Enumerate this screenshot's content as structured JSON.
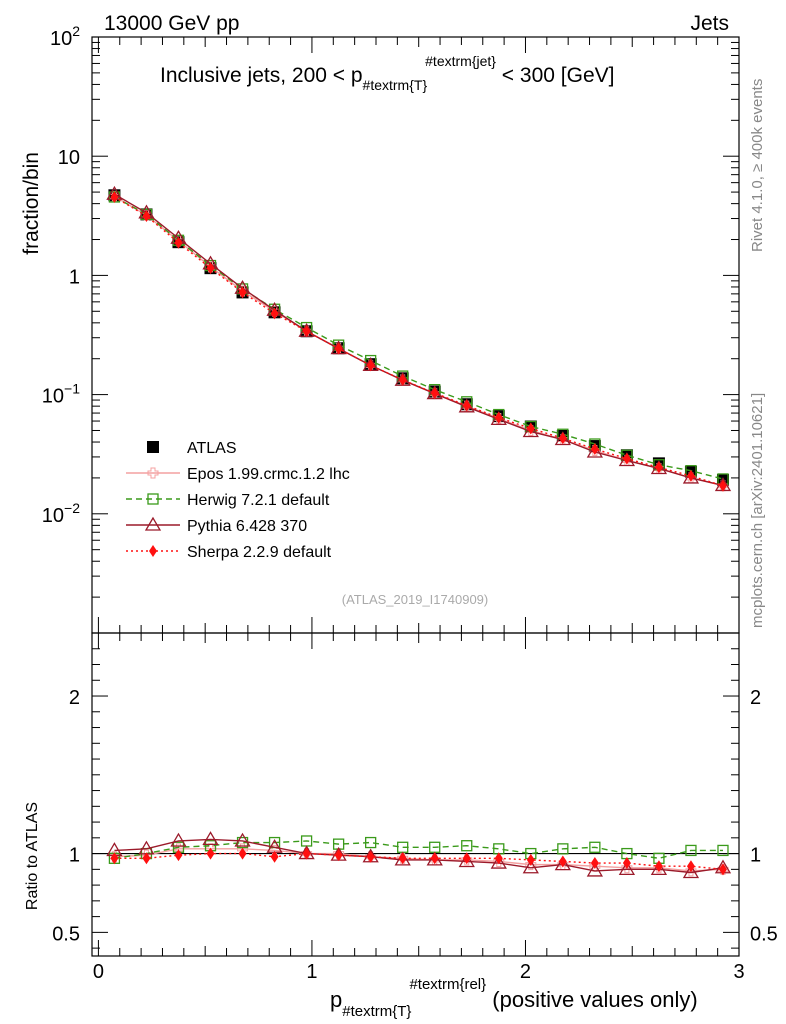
{
  "header": {
    "energy_label": "13000 GeV pp",
    "category_label": "Jets",
    "rivet_label": "Rivet 4.1.0, ≥ 400k events",
    "source_label": "mcplots.cern.ch [arXiv:2401.10621]",
    "analysis_label": "(ATLAS_2019_I1740909)"
  },
  "chart_data": [
    {
      "type": "line",
      "panel": "main",
      "title_main": "Inclusive jets, 200 < p",
      "title_sub": "#textrm{T}",
      "title_sup": "#textrm{jet}",
      "title_end": " < 300 [GeV]",
      "ylabel": "fraction/bin",
      "yscale": "log",
      "ylim": [
        0.001,
        100
      ],
      "xlim": [
        -0.03,
        3.0
      ],
      "y_ticks": [
        {
          "value": 100,
          "base": "10",
          "exp": "2"
        },
        {
          "value": 10,
          "base": "10",
          "exp": ""
        },
        {
          "value": 1,
          "base": "1",
          "exp": ""
        },
        {
          "value": 0.1,
          "base": "10",
          "exp": "−1"
        },
        {
          "value": 0.01,
          "base": "10",
          "exp": "−2"
        }
      ],
      "x": [
        0.075,
        0.225,
        0.375,
        0.525,
        0.675,
        0.825,
        0.975,
        1.125,
        1.275,
        1.425,
        1.575,
        1.725,
        1.875,
        2.025,
        2.175,
        2.325,
        2.475,
        2.625,
        2.775,
        2.925
      ],
      "legend_position": "middle-left",
      "series": [
        {
          "name": "ATLAS",
          "color": "#000000",
          "marker": "square-filled",
          "line": "none",
          "values": [
            4.7,
            3.25,
            1.9,
            1.15,
            0.72,
            0.49,
            0.34,
            0.245,
            0.18,
            0.137,
            0.106,
            0.083,
            0.066,
            0.054,
            0.045,
            0.037,
            0.031,
            0.0265,
            0.0225,
            0.0192
          ]
        },
        {
          "name": "Epos 1.99.crmc.1.2 lhc",
          "color": "#f4a0a0",
          "marker": "cross-open",
          "line": "solid",
          "values": [
            4.6,
            3.2,
            1.95,
            1.18,
            0.74,
            0.5,
            0.34,
            0.245,
            0.176,
            0.133,
            0.102,
            0.08,
            0.063,
            0.05,
            0.042,
            0.034,
            0.028,
            0.024,
            0.02,
            0.0172
          ]
        },
        {
          "name": "Herwig 7.2.1 default",
          "color": "#3a9a1a",
          "marker": "square-open",
          "line": "dashed",
          "values": [
            4.55,
            3.25,
            1.97,
            1.21,
            0.77,
            0.52,
            0.365,
            0.26,
            0.193,
            0.143,
            0.11,
            0.087,
            0.068,
            0.054,
            0.0465,
            0.0385,
            0.031,
            0.0258,
            0.023,
            0.0196
          ]
        },
        {
          "name": "Pythia 6.428 370",
          "color": "#9b1a2a",
          "marker": "triangle-open",
          "line": "solid",
          "values": [
            4.8,
            3.35,
            2.05,
            1.25,
            0.78,
            0.51,
            0.34,
            0.243,
            0.176,
            0.132,
            0.102,
            0.079,
            0.062,
            0.049,
            0.042,
            0.033,
            0.028,
            0.024,
            0.02,
            0.0173
          ]
        },
        {
          "name": "Sherpa 2.2.9 default",
          "color": "#ff1010",
          "marker": "diamond-filled",
          "line": "dotted",
          "values": [
            4.55,
            3.15,
            1.88,
            1.15,
            0.72,
            0.48,
            0.34,
            0.243,
            0.176,
            0.133,
            0.103,
            0.081,
            0.064,
            0.052,
            0.043,
            0.035,
            0.029,
            0.0245,
            0.0208,
            0.0172
          ]
        }
      ]
    },
    {
      "type": "line",
      "panel": "ratio",
      "ylabel": "Ratio to ATLAS",
      "xlabel_main": "p",
      "xlabel_sub": "#textrm{T}",
      "xlabel_sup": "#textrm{rel}",
      "xlabel_end": " (positive values only)",
      "ylim": [
        0.35,
        2.4
      ],
      "xlim": [
        -0.03,
        3.0
      ],
      "y_ticks": [
        0.5,
        1,
        2
      ],
      "y_tick_labels": [
        "0.5",
        "1",
        "2"
      ],
      "x_ticks": [
        0,
        1,
        2,
        3
      ],
      "x_tick_labels": [
        "0",
        "1",
        "2",
        "3"
      ],
      "x": [
        0.075,
        0.225,
        0.375,
        0.525,
        0.675,
        0.825,
        0.975,
        1.125,
        1.275,
        1.425,
        1.575,
        1.725,
        1.875,
        2.025,
        2.175,
        2.325,
        2.475,
        2.625,
        2.775,
        2.925
      ],
      "series": [
        {
          "name": "Epos 1.99.crmc.1.2 lhc",
          "color": "#f4a0a0",
          "marker": "cross-open",
          "line": "solid",
          "values": [
            0.98,
            0.99,
            1.03,
            1.03,
            1.03,
            1.02,
            1.0,
            1.0,
            0.98,
            0.97,
            0.96,
            0.96,
            0.95,
            0.93,
            0.93,
            0.92,
            0.91,
            0.91,
            0.89,
            0.9
          ]
        },
        {
          "name": "Herwig 7.2.1 default",
          "color": "#3a9a1a",
          "marker": "square-open",
          "line": "dashed",
          "values": [
            0.97,
            1.0,
            1.04,
            1.05,
            1.07,
            1.07,
            1.08,
            1.06,
            1.07,
            1.04,
            1.04,
            1.05,
            1.03,
            1.0,
            1.03,
            1.04,
            1.0,
            0.97,
            1.02,
            1.02
          ]
        },
        {
          "name": "Pythia 6.428 370",
          "color": "#9b1a2a",
          "marker": "triangle-open",
          "line": "solid",
          "values": [
            1.02,
            1.03,
            1.08,
            1.09,
            1.08,
            1.04,
            1.0,
            0.99,
            0.98,
            0.96,
            0.96,
            0.95,
            0.94,
            0.91,
            0.93,
            0.89,
            0.9,
            0.9,
            0.88,
            0.91
          ]
        },
        {
          "name": "Sherpa 2.2.9 default",
          "color": "#ff1010",
          "marker": "diamond-filled",
          "line": "dotted",
          "values": [
            0.97,
            0.97,
            0.99,
            1.0,
            1.0,
            0.98,
            1.0,
            0.99,
            0.98,
            0.97,
            0.97,
            0.97,
            0.97,
            0.96,
            0.95,
            0.94,
            0.94,
            0.92,
            0.92,
            0.9
          ]
        }
      ]
    }
  ]
}
